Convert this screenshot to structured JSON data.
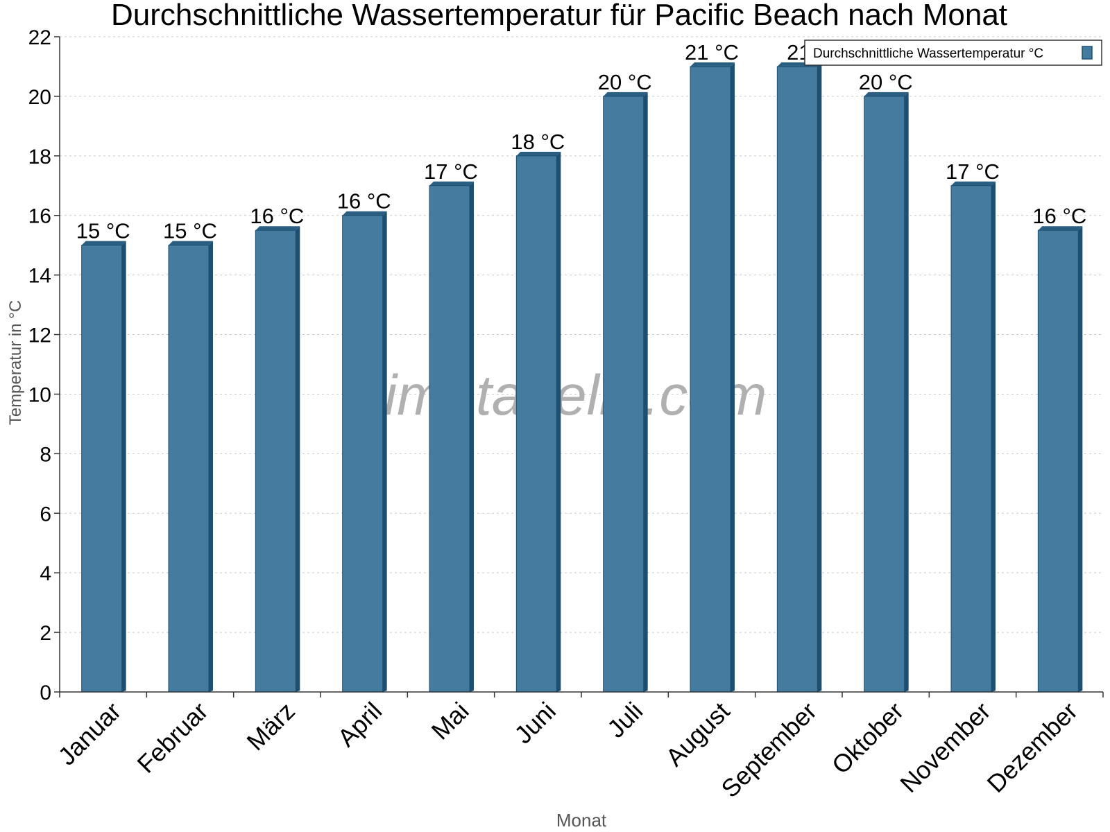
{
  "chart_data": {
    "type": "bar",
    "title": "Durchschnittliche Wassertemperatur für Pacific Beach nach Monat",
    "xlabel": "Monat",
    "ylabel": "Temperatur in °C",
    "ylim": [
      0,
      22
    ],
    "yticks": [
      0,
      2,
      4,
      6,
      8,
      10,
      12,
      14,
      16,
      18,
      20,
      22
    ],
    "grid": true,
    "legend_position": "top-right",
    "categories": [
      "Januar",
      "Februar",
      "März",
      "April",
      "Mai",
      "Juni",
      "Juli",
      "August",
      "September",
      "Oktober",
      "November",
      "Dezember"
    ],
    "series": [
      {
        "name": "Durchschnittliche Wassertemperatur °C",
        "values": [
          15,
          15,
          15.5,
          16,
          17,
          18,
          20,
          21,
          21,
          20,
          17,
          15.5
        ],
        "labels": [
          "15 °C",
          "15 °C",
          "16 °C",
          "16 °C",
          "17 °C",
          "18 °C",
          "20 °C",
          "21 °C",
          "21",
          "20 °C",
          "17 °C",
          "16 °C"
        ]
      }
    ]
  },
  "watermark": "klimatabelle.com",
  "colors": {
    "bar_front": "#447b9e",
    "bar_side": "#1d4f70",
    "bar_top": "#2a5f82",
    "axis": "#333333",
    "grid": "#c8c8c8",
    "axis_title": "#555555",
    "watermark": "#b0b0b0"
  }
}
